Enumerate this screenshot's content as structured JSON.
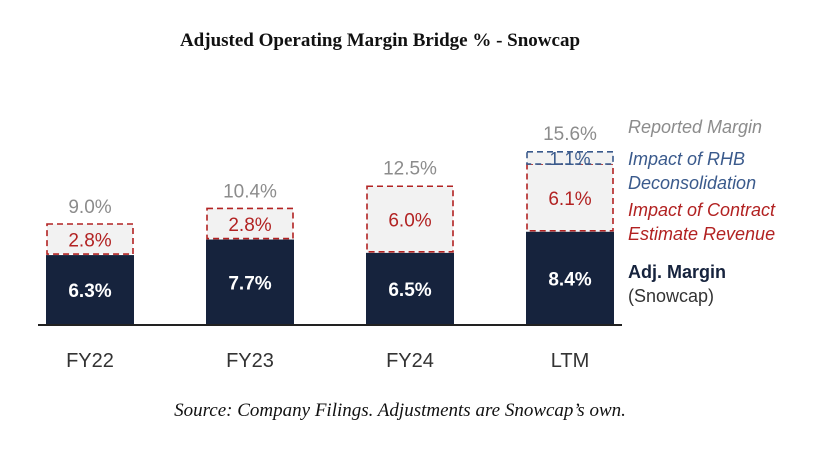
{
  "title": "Adjusted Operating Margin Bridge % - Snowcap",
  "source": "Source: Company Filings. Adjustments are Snowcap’s own.",
  "colors": {
    "adj_margin": "#16233d",
    "contract": "#b22222",
    "rhb": "#3a5a8c",
    "reported": "#8c8c8c",
    "adjustment_fill": "#f2f2f2"
  },
  "chart_data": {
    "type": "bar",
    "stacked": true,
    "categories": [
      "FY22",
      "FY23",
      "FY24",
      "LTM"
    ],
    "ylim": [
      0,
      16.5
    ],
    "series": [
      {
        "name": "Adj. Margin (Snowcap)",
        "values": [
          6.3,
          7.7,
          6.5,
          8.4
        ],
        "labels": [
          "6.3%",
          "7.7%",
          "6.5%",
          "8.4%"
        ]
      },
      {
        "name": "Impact of Contract Estimate Revenue",
        "values": [
          2.8,
          2.8,
          6.0,
          6.1
        ],
        "labels": [
          "2.8%",
          "2.8%",
          "6.0%",
          "6.1%"
        ]
      },
      {
        "name": "Impact of RHB Deconsolidation",
        "values": [
          0,
          0,
          0,
          1.1
        ],
        "labels": [
          "",
          "",
          "",
          "1.1%"
        ]
      }
    ],
    "totals": [
      9.0,
      10.4,
      12.5,
      15.6
    ],
    "total_labels": [
      "9.0%",
      "10.4%",
      "12.5%",
      "15.6%"
    ],
    "legend": [
      {
        "key": "reported",
        "lines": [
          "Reported Margin"
        ]
      },
      {
        "key": "rhb",
        "lines": [
          "Impact of RHB",
          "Deconsolidation"
        ]
      },
      {
        "key": "contract",
        "lines": [
          "Impact of Contract",
          "Estimate Revenue"
        ]
      },
      {
        "key": "adj_margin",
        "lines": [
          "Adj. Margin",
          "(Snowcap)"
        ]
      }
    ]
  }
}
